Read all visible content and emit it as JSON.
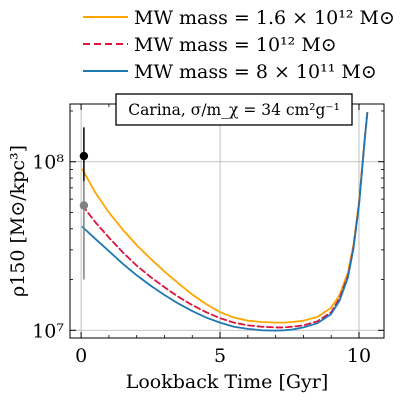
{
  "chart_data": {
    "type": "line",
    "title": "Carina, σ/m_χ = 34 cm²g⁻¹",
    "xlabel": "Lookback Time [Gyr]",
    "ylabel": "ρ150 [M⊙/kpc³]",
    "xlim": [
      -0.4,
      10.9
    ],
    "ylim": [
      9000000.0,
      220000000.0
    ],
    "yscale": "log",
    "grid": true,
    "legend_position": "above plot",
    "x_ticks": [
      0,
      5,
      10
    ],
    "x_tick_labels": [
      "0",
      "5",
      "10"
    ],
    "y_ticks": [
      10000000,
      100000000
    ],
    "y_tick_labels": [
      "10⁷",
      "10⁸"
    ],
    "series": [
      {
        "name": "MW mass = 1.6 × 10¹² M⊙",
        "color": "#ffa500",
        "dash": "solid",
        "x": [
          0.05,
          0.5,
          1,
          1.5,
          2,
          2.5,
          3,
          3.5,
          4,
          4.5,
          5,
          5.5,
          6,
          6.5,
          7,
          7.3,
          7.6,
          8,
          8.5,
          9,
          9.3,
          9.6,
          9.8,
          10.0,
          10.1,
          10.2,
          10.3
        ],
        "values": [
          90000000.0,
          66000000.0,
          50000000.0,
          39500000.0,
          32000000.0,
          26600000.0,
          22300000.0,
          19000000.0,
          16300000.0,
          14300000.0,
          12800000.0,
          11900000.0,
          11400000.0,
          11200000.0,
          11100000.0,
          11100000.0,
          11200000.0,
          11400000.0,
          12000000.0,
          13600000.0,
          16200000.0,
          22000000.0,
          32000000.0,
          58000000.0,
          88000000.0,
          135000000.0,
          195000000.0
        ]
      },
      {
        "name": "MW mass = 10¹² M⊙",
        "color": "#dc143c",
        "dash": "dashed",
        "x": [
          0.05,
          0.5,
          1,
          1.5,
          2,
          2.5,
          3,
          3.5,
          4,
          4.5,
          5,
          5.5,
          6,
          6.5,
          7,
          7.3,
          7.6,
          8,
          8.5,
          9,
          9.3,
          9.6,
          9.8,
          10.0,
          10.1,
          10.2,
          10.3
        ],
        "values": [
          55000000.0,
          44000000.0,
          35500000.0,
          29000000.0,
          24200000.0,
          20700000.0,
          18000000.0,
          15800000.0,
          14100000.0,
          12800000.0,
          11800000.0,
          11100000.0,
          10700000.0,
          10500000.0,
          10400000.0,
          10400000.0,
          10500000.0,
          10700000.0,
          11300000.0,
          12800000.0,
          15500000.0,
          21000000.0,
          31000000.0,
          56000000.0,
          86000000.0,
          133000000.0,
          195000000.0
        ]
      },
      {
        "name": "MW mass = 8 × 10¹¹ M⊙",
        "color": "#1f77b4",
        "dash": "solid",
        "x": [
          0.05,
          0.5,
          1,
          1.5,
          2,
          2.5,
          3,
          3.5,
          4,
          4.5,
          5,
          5.5,
          6,
          6.5,
          7,
          7.3,
          7.6,
          8,
          8.5,
          9,
          9.3,
          9.6,
          9.8,
          10.0,
          10.1,
          10.2,
          10.3
        ],
        "values": [
          41000000.0,
          35000000.0,
          29500000.0,
          24800000.0,
          21200000.0,
          18400000.0,
          16200000.0,
          14400000.0,
          13000000.0,
          11900000.0,
          11100000.0,
          10500000.0,
          10200000.0,
          10000000.0,
          9950000.0,
          10000000.0,
          10100000.0,
          10400000.0,
          11000000.0,
          12500000.0,
          15000000.0,
          20500000.0,
          30500000.0,
          55000000.0,
          85000000.0,
          132000000.0,
          195000000.0
        ]
      }
    ],
    "observations": [
      {
        "x": 0.1,
        "y": 108000000.0,
        "ylow": 76000000.0,
        "yhigh": 160000000.0,
        "color": "#000000"
      },
      {
        "x": 0.1,
        "y": 55000000.0,
        "ylow": 20000000.0,
        "yhigh": 77000000.0,
        "color": "#808080"
      }
    ]
  }
}
